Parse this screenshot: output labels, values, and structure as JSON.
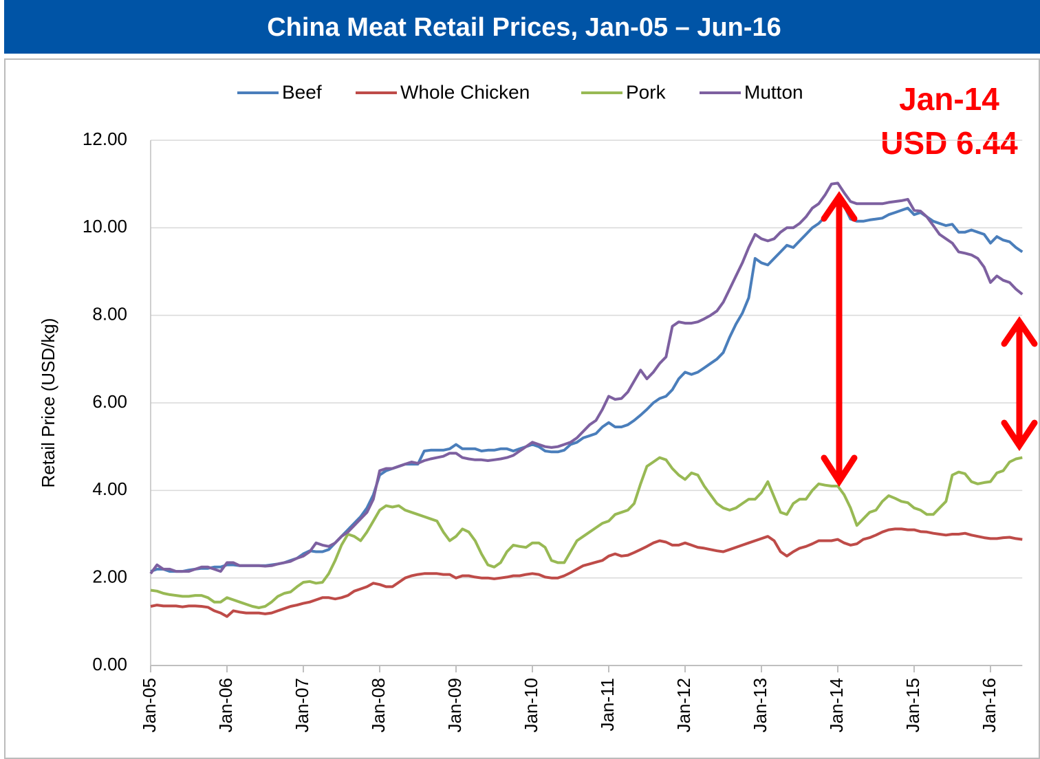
{
  "chart_data": {
    "type": "line",
    "title": "China Meat Retail Prices, Jan-05 – Jun-16",
    "y_label": "Retail Price (USD/kg)",
    "annotations": [
      "Jan-14",
      "USD 6.44"
    ],
    "categories": [
      "Jan-05",
      null,
      null,
      null,
      null,
      null,
      null,
      null,
      null,
      null,
      null,
      null,
      "Jan-06",
      null,
      null,
      null,
      null,
      null,
      null,
      null,
      null,
      null,
      null,
      null,
      "Jan-07",
      null,
      null,
      null,
      null,
      null,
      null,
      null,
      null,
      null,
      null,
      null,
      "Jan-08",
      null,
      null,
      null,
      null,
      null,
      null,
      null,
      null,
      null,
      null,
      null,
      "Jan-09",
      null,
      null,
      null,
      null,
      null,
      null,
      null,
      null,
      null,
      null,
      null,
      "Jan-10",
      null,
      null,
      null,
      null,
      null,
      null,
      null,
      null,
      null,
      null,
      null,
      "Jan-11",
      null,
      null,
      null,
      null,
      null,
      null,
      null,
      null,
      null,
      null,
      null,
      "Jan-12",
      null,
      null,
      null,
      null,
      null,
      null,
      null,
      null,
      null,
      null,
      null,
      "Jan-13",
      null,
      null,
      null,
      null,
      null,
      null,
      null,
      null,
      null,
      null,
      null,
      "Jan-14",
      null,
      null,
      null,
      null,
      null,
      null,
      null,
      null,
      null,
      null,
      null,
      "Jan-15",
      null,
      null,
      null,
      null,
      null,
      null,
      null,
      null,
      null,
      null,
      null,
      "Jan-16",
      null,
      null,
      null,
      null,
      null
    ],
    "series": [
      {
        "name": "Beef",
        "color": "#4a7ebb",
        "values": [
          2.15,
          2.2,
          2.2,
          2.15,
          2.15,
          2.15,
          2.18,
          2.2,
          2.22,
          2.22,
          2.25,
          2.25,
          2.3,
          2.3,
          2.28,
          2.28,
          2.28,
          2.28,
          2.28,
          2.3,
          2.32,
          2.35,
          2.4,
          2.45,
          2.55,
          2.62,
          2.6,
          2.6,
          2.65,
          2.8,
          2.95,
          3.1,
          3.25,
          3.4,
          3.6,
          3.9,
          4.35,
          4.45,
          4.5,
          4.55,
          4.6,
          4.6,
          4.6,
          4.9,
          4.92,
          4.92,
          4.92,
          4.95,
          5.05,
          4.95,
          4.95,
          4.95,
          4.9,
          4.92,
          4.92,
          4.95,
          4.95,
          4.9,
          4.95,
          5.0,
          5.05,
          5.0,
          4.9,
          4.88,
          4.88,
          4.92,
          5.05,
          5.1,
          5.2,
          5.25,
          5.3,
          5.45,
          5.55,
          5.45,
          5.45,
          5.5,
          5.6,
          5.72,
          5.85,
          6.0,
          6.1,
          6.15,
          6.3,
          6.55,
          6.7,
          6.65,
          6.7,
          6.8,
          6.9,
          7.0,
          7.15,
          7.5,
          7.8,
          8.05,
          8.4,
          9.3,
          9.2,
          9.15,
          9.3,
          9.45,
          9.6,
          9.55,
          9.7,
          9.85,
          10.0,
          10.1,
          10.25,
          10.4,
          10.6,
          10.5,
          10.2,
          10.15,
          10.15,
          10.18,
          10.2,
          10.22,
          10.3,
          10.35,
          10.4,
          10.45,
          10.3,
          10.35,
          10.25,
          10.15,
          10.1,
          10.05,
          10.08,
          9.9,
          9.9,
          9.95,
          9.9,
          9.85,
          9.65,
          9.8,
          9.72,
          9.68,
          9.55,
          9.45
        ]
      },
      {
        "name": "Whole Chicken",
        "color": "#be4b48",
        "values": [
          1.35,
          1.38,
          1.36,
          1.36,
          1.36,
          1.34,
          1.36,
          1.36,
          1.35,
          1.33,
          1.25,
          1.2,
          1.12,
          1.25,
          1.22,
          1.2,
          1.2,
          1.2,
          1.18,
          1.2,
          1.25,
          1.3,
          1.35,
          1.38,
          1.42,
          1.45,
          1.5,
          1.55,
          1.55,
          1.52,
          1.55,
          1.6,
          1.7,
          1.75,
          1.8,
          1.88,
          1.85,
          1.8,
          1.8,
          1.9,
          2.0,
          2.05,
          2.08,
          2.1,
          2.1,
          2.1,
          2.08,
          2.08,
          2.0,
          2.05,
          2.05,
          2.02,
          2.0,
          2.0,
          1.98,
          2.0,
          2.02,
          2.05,
          2.05,
          2.08,
          2.1,
          2.08,
          2.02,
          2.0,
          2.0,
          2.05,
          2.12,
          2.2,
          2.28,
          2.32,
          2.36,
          2.4,
          2.5,
          2.55,
          2.5,
          2.52,
          2.58,
          2.65,
          2.72,
          2.8,
          2.85,
          2.82,
          2.75,
          2.75,
          2.8,
          2.75,
          2.7,
          2.68,
          2.65,
          2.62,
          2.6,
          2.65,
          2.7,
          2.75,
          2.8,
          2.85,
          2.9,
          2.95,
          2.85,
          2.6,
          2.5,
          2.6,
          2.68,
          2.72,
          2.78,
          2.85,
          2.85,
          2.85,
          2.88,
          2.8,
          2.75,
          2.78,
          2.88,
          2.92,
          2.98,
          3.05,
          3.1,
          3.12,
          3.12,
          3.1,
          3.1,
          3.06,
          3.05,
          3.02,
          3.0,
          2.98,
          3.0,
          3.0,
          3.02,
          2.98,
          2.95,
          2.92,
          2.9,
          2.9,
          2.92,
          2.93,
          2.9,
          2.88
        ]
      },
      {
        "name": "Pork",
        "color": "#98b954",
        "values": [
          1.72,
          1.7,
          1.65,
          1.62,
          1.6,
          1.58,
          1.58,
          1.6,
          1.6,
          1.55,
          1.45,
          1.45,
          1.55,
          1.5,
          1.45,
          1.4,
          1.35,
          1.32,
          1.35,
          1.45,
          1.58,
          1.65,
          1.68,
          1.8,
          1.9,
          1.92,
          1.88,
          1.9,
          2.1,
          2.4,
          2.75,
          3.0,
          2.95,
          2.85,
          3.05,
          3.3,
          3.55,
          3.65,
          3.62,
          3.65,
          3.55,
          3.5,
          3.45,
          3.4,
          3.35,
          3.3,
          3.05,
          2.85,
          2.95,
          3.12,
          3.05,
          2.85,
          2.55,
          2.3,
          2.25,
          2.35,
          2.6,
          2.75,
          2.72,
          2.7,
          2.8,
          2.8,
          2.7,
          2.4,
          2.35,
          2.35,
          2.6,
          2.85,
          2.95,
          3.05,
          3.15,
          3.25,
          3.3,
          3.45,
          3.5,
          3.55,
          3.7,
          4.15,
          4.55,
          4.65,
          4.75,
          4.7,
          4.5,
          4.35,
          4.25,
          4.4,
          4.35,
          4.1,
          3.9,
          3.7,
          3.6,
          3.55,
          3.6,
          3.7,
          3.8,
          3.8,
          3.95,
          4.2,
          3.85,
          3.5,
          3.45,
          3.7,
          3.8,
          3.8,
          4.0,
          4.15,
          4.12,
          4.1,
          4.1,
          3.9,
          3.6,
          3.2,
          3.35,
          3.5,
          3.55,
          3.75,
          3.88,
          3.82,
          3.75,
          3.72,
          3.6,
          3.55,
          3.45,
          3.45,
          3.6,
          3.75,
          4.35,
          4.42,
          4.38,
          4.2,
          4.15,
          4.18,
          4.2,
          4.4,
          4.45,
          4.65,
          4.72,
          4.75
        ]
      },
      {
        "name": "Mutton",
        "color": "#7d60a0",
        "values": [
          2.1,
          2.3,
          2.2,
          2.2,
          2.15,
          2.15,
          2.15,
          2.2,
          2.25,
          2.25,
          2.2,
          2.15,
          2.35,
          2.35,
          2.28,
          2.28,
          2.28,
          2.28,
          2.27,
          2.28,
          2.32,
          2.35,
          2.38,
          2.45,
          2.5,
          2.6,
          2.8,
          2.75,
          2.72,
          2.8,
          2.95,
          3.05,
          3.2,
          3.35,
          3.5,
          3.8,
          4.45,
          4.5,
          4.5,
          4.55,
          4.6,
          4.65,
          4.62,
          4.68,
          4.72,
          4.75,
          4.78,
          4.85,
          4.85,
          4.75,
          4.72,
          4.7,
          4.7,
          4.68,
          4.7,
          4.72,
          4.75,
          4.8,
          4.9,
          5.0,
          5.1,
          5.05,
          5.0,
          4.98,
          5.0,
          5.05,
          5.1,
          5.2,
          5.35,
          5.5,
          5.6,
          5.85,
          6.15,
          6.08,
          6.1,
          6.25,
          6.5,
          6.75,
          6.55,
          6.7,
          6.9,
          7.05,
          7.75,
          7.85,
          7.82,
          7.82,
          7.85,
          7.92,
          8.0,
          8.1,
          8.3,
          8.6,
          8.9,
          9.2,
          9.55,
          9.85,
          9.75,
          9.7,
          9.75,
          9.9,
          10.0,
          10.0,
          10.1,
          10.25,
          10.45,
          10.55,
          10.75,
          11.0,
          11.02,
          10.8,
          10.6,
          10.55,
          10.55,
          10.55,
          10.55,
          10.55,
          10.58,
          10.6,
          10.62,
          10.65,
          10.4,
          10.38,
          10.25,
          10.05,
          9.85,
          9.75,
          9.65,
          9.45,
          9.42,
          9.38,
          9.3,
          9.1,
          8.75,
          8.9,
          8.8,
          8.75,
          8.6,
          8.48
        ]
      }
    ],
    "ylim": [
      0,
      12
    ],
    "yticks": [
      {
        "value": 0,
        "label": "0.00"
      },
      {
        "value": 2,
        "label": "2.00"
      },
      {
        "value": 4,
        "label": "4.00"
      },
      {
        "value": 6,
        "label": "6.00"
      },
      {
        "value": 8,
        "label": "8.00"
      },
      {
        "value": 10,
        "label": "10.00"
      },
      {
        "value": 12,
        "label": "12.00"
      }
    ],
    "grid": true,
    "legend": "top"
  }
}
